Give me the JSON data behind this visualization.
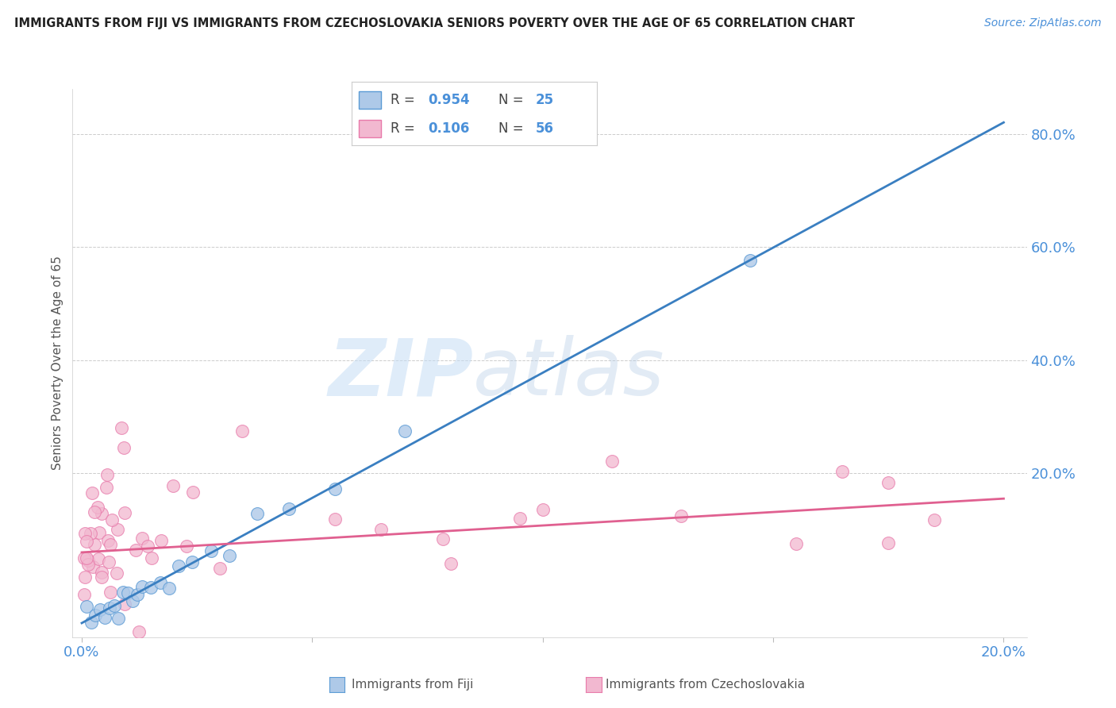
{
  "title": "IMMIGRANTS FROM FIJI VS IMMIGRANTS FROM CZECHOSLOVAKIA SENIORS POVERTY OVER THE AGE OF 65 CORRELATION CHART",
  "source": "Source: ZipAtlas.com",
  "ylabel": "Seniors Poverty Over the Age of 65",
  "xlim": [
    -0.002,
    0.205
  ],
  "ylim": [
    -0.09,
    0.88
  ],
  "xtick_positions": [
    0.0,
    0.05,
    0.1,
    0.15,
    0.2
  ],
  "xticklabels": [
    "0.0%",
    "",
    "",
    "",
    "20.0%"
  ],
  "yticks_right": [
    0.2,
    0.4,
    0.6,
    0.8
  ],
  "ytick_labels_right": [
    "20.0%",
    "40.0%",
    "60.0%",
    "80.0%"
  ],
  "fiji_color_edge": "#5b9bd5",
  "fiji_color_fill": "#aec9e8",
  "czech_color_edge": "#e87aaa",
  "czech_color_fill": "#f2b8d0",
  "fiji_R": "0.954",
  "fiji_N": "25",
  "czech_R": "0.106",
  "czech_N": "56",
  "legend_fiji_label": "Immigrants from Fiji",
  "legend_czech_label": "Immigrants from Czechoslovakia",
  "watermark_zip": "ZIP",
  "watermark_atlas": "atlas",
  "grid_color": "#cccccc",
  "background_color": "#ffffff",
  "title_color": "#222222",
  "axis_label_color": "#555555",
  "tick_label_color": "#4a90d9",
  "fiji_line_color": "#3a7fc1",
  "czech_line_color": "#e06090",
  "fiji_line_x0": 0.0,
  "fiji_line_y0": -0.065,
  "fiji_line_x1": 0.2,
  "fiji_line_y1": 0.82,
  "czech_line_x0": 0.0,
  "czech_line_y0": 0.06,
  "czech_line_x1": 0.2,
  "czech_line_y1": 0.155
}
